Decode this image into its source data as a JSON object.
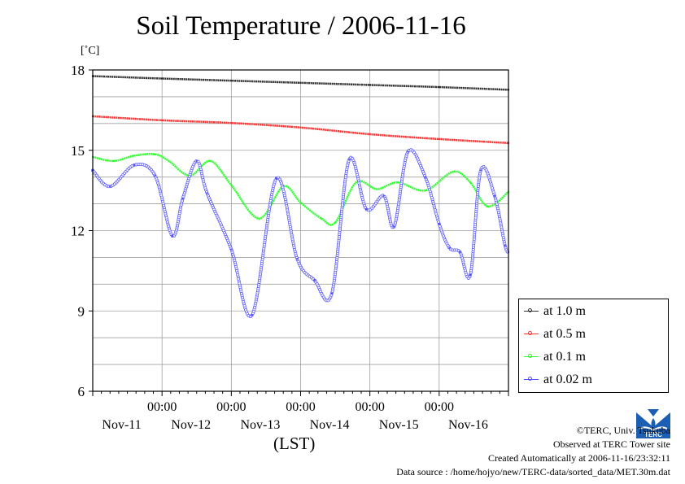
{
  "title": "Soil Temperature / 2006-11-16",
  "unit_label": "[˚C]",
  "x_axis_label": "(LST)",
  "credits": {
    "copyright": "©TERC, Univ. Tsukuba",
    "observed": "Observed at TERC Tower site",
    "created": "Created Automatically at 2006-11-16/23:32:11",
    "source": "Data source : /home/hojyo/new/TERC-data/sorted_data/MET.30m.dat"
  },
  "logo_text": "TERC",
  "chart_data": {
    "type": "line",
    "title": "Soil Temperature / 2006-11-16",
    "ylabel": "[˚C]",
    "xlabel": "(LST)",
    "ylim": [
      6,
      18
    ],
    "yticks": [
      6,
      9,
      12,
      15,
      18
    ],
    "xlim_days": [
      0,
      6
    ],
    "x_time_ticks": [
      "00:00",
      "00:00",
      "00:00",
      "00:00",
      "00:00"
    ],
    "x_time_tick_days": [
      1,
      2,
      3,
      4,
      5
    ],
    "x_date_labels": [
      "Nov-11",
      "Nov-12",
      "Nov-13",
      "Nov-14",
      "Nov-15",
      "Nov-16"
    ],
    "grid": true,
    "legend_position": "right",
    "series": [
      {
        "name": "at 1.0 m",
        "color": "#303030",
        "x": [
          0,
          1,
          2,
          3,
          4,
          5,
          6
        ],
        "values": [
          17.77,
          17.68,
          17.6,
          17.52,
          17.44,
          17.36,
          17.26
        ]
      },
      {
        "name": "at 0.5 m",
        "color": "#ff3030",
        "x": [
          0,
          1,
          2,
          3,
          4,
          5,
          6
        ],
        "values": [
          16.27,
          16.12,
          16.02,
          15.85,
          15.6,
          15.42,
          15.27
        ]
      },
      {
        "name": "at 0.1 m",
        "color": "#30ff30",
        "x": [
          0,
          0.3,
          0.6,
          0.9,
          1.1,
          1.4,
          1.7,
          2.0,
          2.4,
          2.75,
          3.0,
          3.3,
          3.5,
          3.8,
          4.1,
          4.4,
          4.8,
          5.2,
          5.45,
          5.7,
          6.0
        ],
        "values": [
          14.75,
          14.6,
          14.8,
          14.85,
          14.6,
          14.05,
          14.6,
          13.7,
          12.45,
          13.65,
          13.05,
          12.45,
          12.3,
          13.8,
          13.55,
          13.8,
          13.5,
          14.2,
          13.8,
          12.9,
          13.45
        ]
      },
      {
        "name": "at 0.02 m",
        "color": "#5050ff",
        "x": [
          0,
          0.25,
          0.6,
          0.9,
          1.15,
          1.3,
          1.5,
          1.65,
          2.0,
          2.3,
          2.65,
          2.95,
          3.2,
          3.45,
          3.7,
          3.95,
          4.2,
          4.35,
          4.55,
          4.8,
          5.0,
          5.15,
          5.3,
          5.45,
          5.6,
          5.8,
          5.95,
          6.0
        ],
        "values": [
          14.25,
          13.65,
          14.45,
          14.05,
          11.8,
          13.2,
          14.6,
          13.4,
          11.3,
          8.85,
          13.95,
          10.95,
          10.15,
          9.65,
          14.65,
          12.8,
          13.3,
          12.15,
          14.95,
          14.0,
          12.25,
          11.35,
          11.2,
          10.35,
          14.25,
          13.3,
          11.45,
          11.2
        ]
      }
    ]
  },
  "legend": [
    {
      "label": "at 1.0 m",
      "color": "#303030"
    },
    {
      "label": "at 0.5 m",
      "color": "#ff3030"
    },
    {
      "label": "at 0.1 m",
      "color": "#30ff30"
    },
    {
      "label": "at 0.02 m",
      "color": "#5050ff"
    }
  ]
}
